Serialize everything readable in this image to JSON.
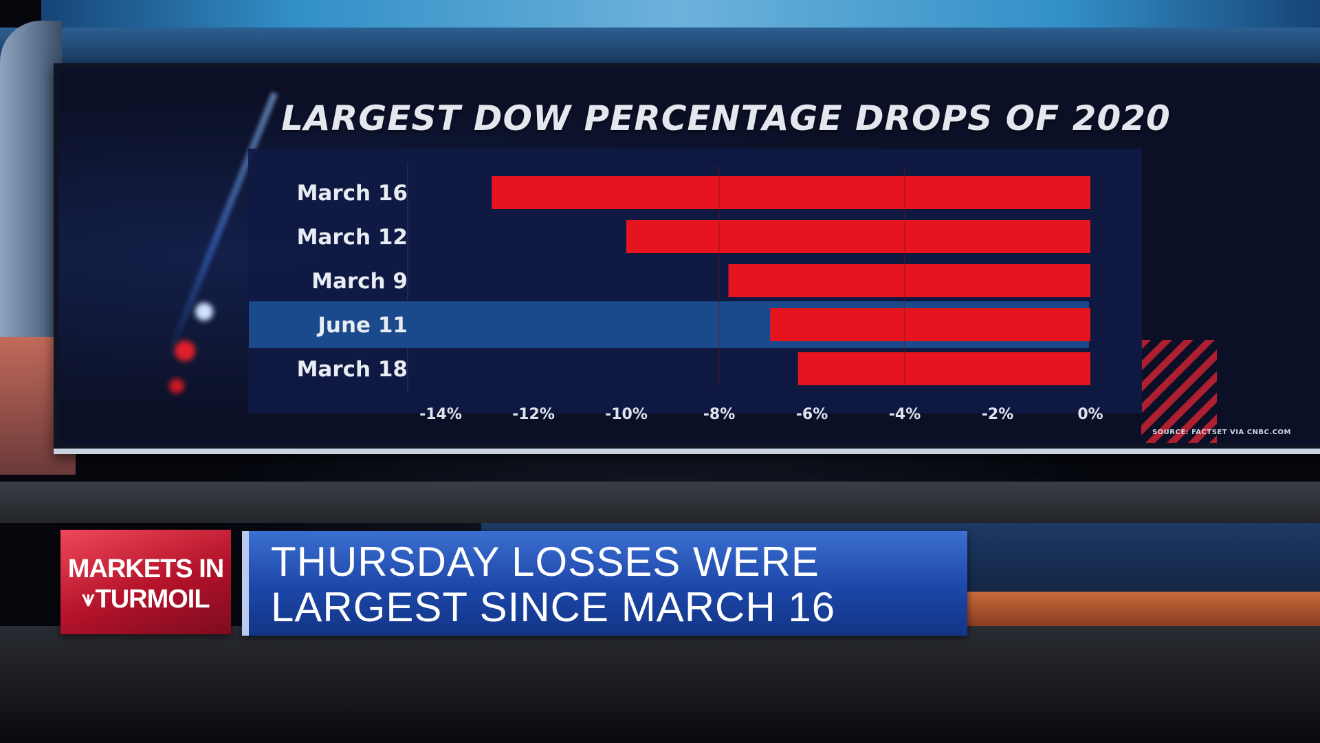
{
  "colors": {
    "bar": "#e5141f",
    "highlight_band": "#1b4a8c",
    "tag_red": "#c8192f",
    "headline_blue": "#1c46a8"
  },
  "chart_data": {
    "type": "bar",
    "orientation": "horizontal",
    "title": "LARGEST DOW PERCENTAGE DROPS OF 2020",
    "categories": [
      "March 16",
      "March 12",
      "March 9",
      "June 11",
      "March 18"
    ],
    "values": [
      -12.9,
      -10.0,
      -7.8,
      -6.9,
      -6.3
    ],
    "highlighted": "June 11",
    "xlim": [
      -14,
      0
    ],
    "xticks": [
      "-14%",
      "-12%",
      "-10%",
      "-8%",
      "-6%",
      "-4%",
      "-2%",
      "0%"
    ],
    "xtick_values": [
      -14,
      -12,
      -10,
      -8,
      -6,
      -4,
      -2,
      0
    ],
    "source": "SOURCE: FACTSET VIA CNBC.COM"
  },
  "lower_third": {
    "tag_line1": "MARKETS IN",
    "tag_arrow": "⩛",
    "tag_line2": "TURMOIL",
    "headline_line1": "THURSDAY LOSSES WERE",
    "headline_line2": "LARGEST SINCE MARCH 16"
  }
}
